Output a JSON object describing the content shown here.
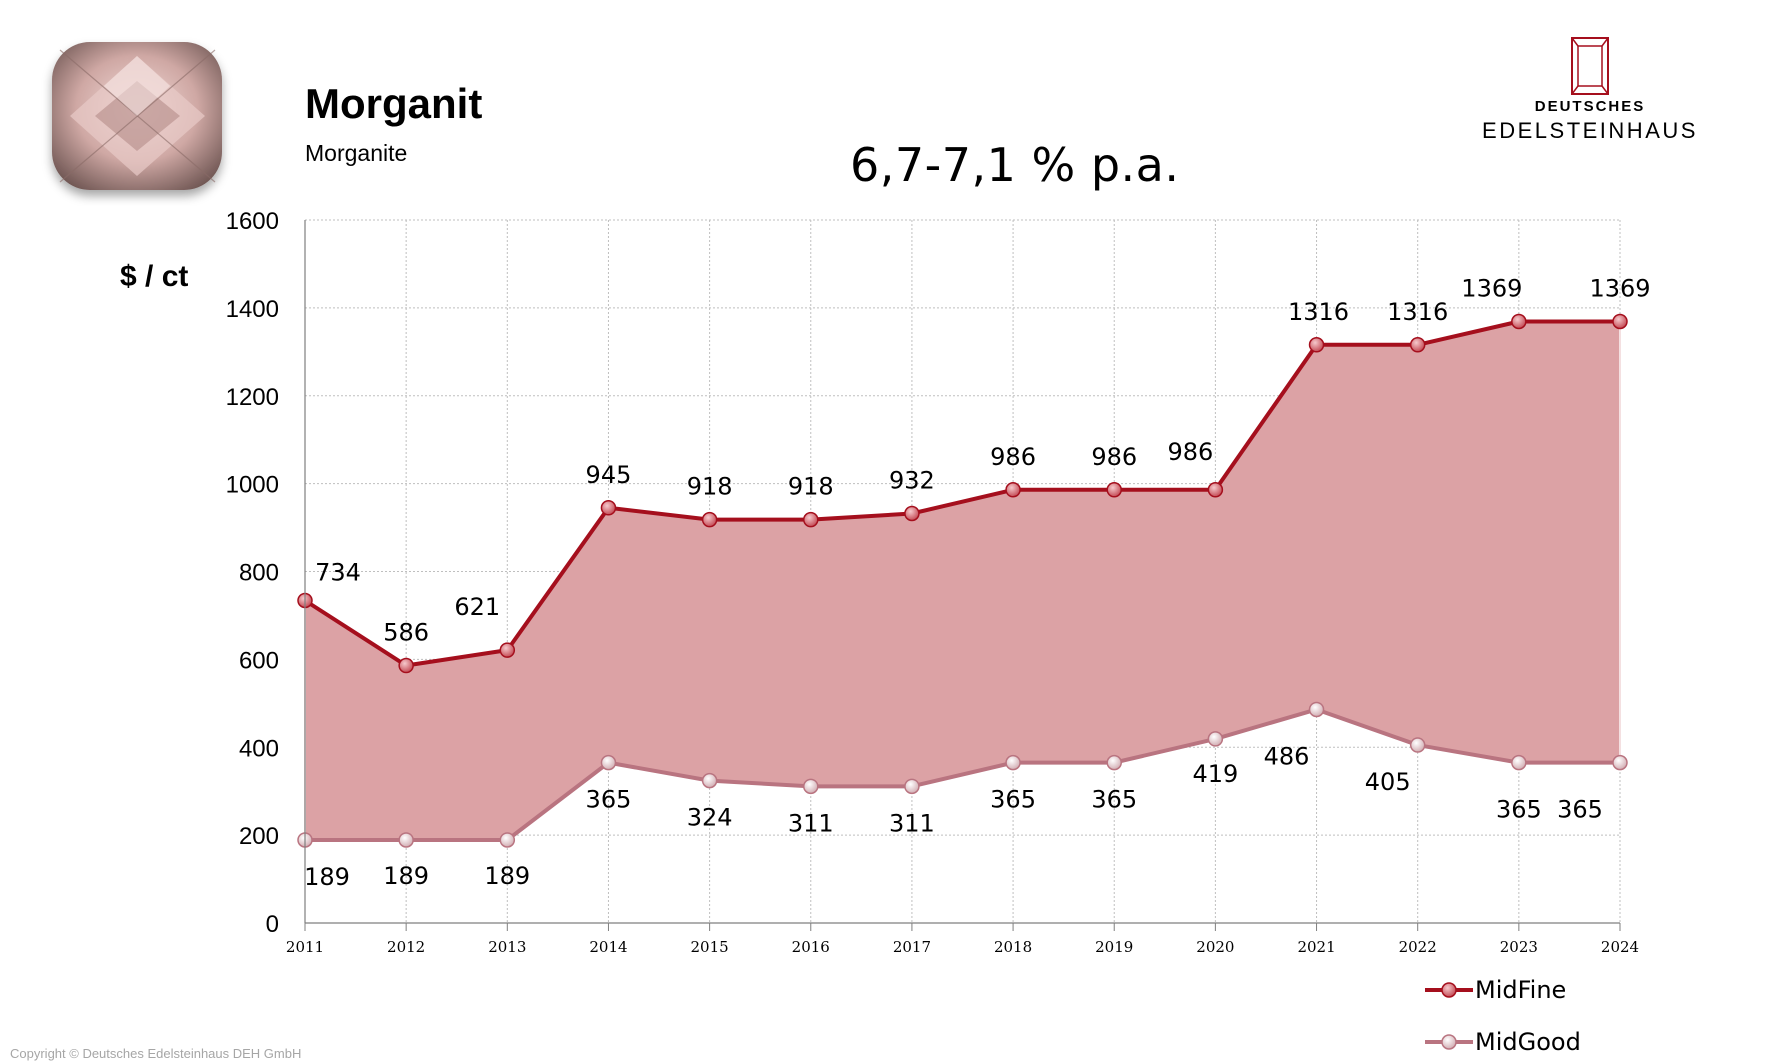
{
  "header": {
    "title": "Morganit",
    "subtitle": "Morganite",
    "growth_rate": "6,7-7,1 % p.a."
  },
  "logo": {
    "line1": "DEUTSCHES",
    "line2": "EDELSTEINHAUS"
  },
  "copyright": "Copyright © Deutsches Edelsteinhaus DEH GmbH",
  "colors": {
    "midfine": "#a50f1d",
    "midgood": "#b97480",
    "band": "#dca2a5",
    "grid": "#bfbfbf"
  },
  "chart_data": {
    "type": "area",
    "ylabel": "$ / ct",
    "xlabel": "",
    "ylim": [
      0,
      1600
    ],
    "yticks": [
      0,
      200,
      400,
      600,
      800,
      1000,
      1200,
      1400,
      1600
    ],
    "grid": true,
    "legend_position": "bottom-right",
    "categories": [
      "2011",
      "2012",
      "2013",
      "2014",
      "2015",
      "2016",
      "2017",
      "2018",
      "2019",
      "2020",
      "2021",
      "2022",
      "2023",
      "2024"
    ],
    "series": [
      {
        "name": "MidFine",
        "values": [
          734,
          586,
          621,
          945,
          918,
          918,
          932,
          986,
          986,
          986,
          1316,
          1316,
          1369,
          1369
        ]
      },
      {
        "name": "MidGood",
        "values": [
          189,
          189,
          189,
          365,
          324,
          311,
          311,
          365,
          365,
          419,
          486,
          405,
          365,
          365
        ]
      }
    ]
  }
}
